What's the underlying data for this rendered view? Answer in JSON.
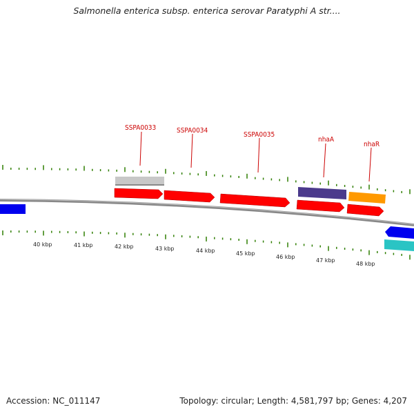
{
  "header": {
    "title": "Salmonella enterica subsp. enterica serovar Paratyphi A str...."
  },
  "footer": {
    "accession": "Accession: NC_011147",
    "summary": "Topology: circular; Length: 4,581,797 bp; Genes: 4,207"
  },
  "map": {
    "gene_labels": [
      {
        "id": "g1",
        "text": "SSPA0033"
      },
      {
        "id": "g2",
        "text": "SSPA0034"
      },
      {
        "id": "g3",
        "text": "SSPA0035"
      },
      {
        "id": "g4",
        "text": "nhaA"
      },
      {
        "id": "g5",
        "text": "nhaR"
      }
    ],
    "tick_labels": [
      "40 kbp",
      "41 kbp",
      "42 kbp",
      "43 kbp",
      "44 kbp",
      "45 kbp",
      "46 kbp",
      "47 kbp",
      "48 kbp"
    ],
    "colors": {
      "backbone": "#7a7a7a",
      "forward_cds": "#ff0000",
      "label": "#cc0000",
      "tick": "#2e7d00",
      "grey_feature": "#c8c8c8",
      "purple_feature": "#4b3a8c",
      "orange_feature": "#ff9900",
      "blue_feature": "#0000ee",
      "cyan_feature": "#2ac4c4"
    }
  }
}
